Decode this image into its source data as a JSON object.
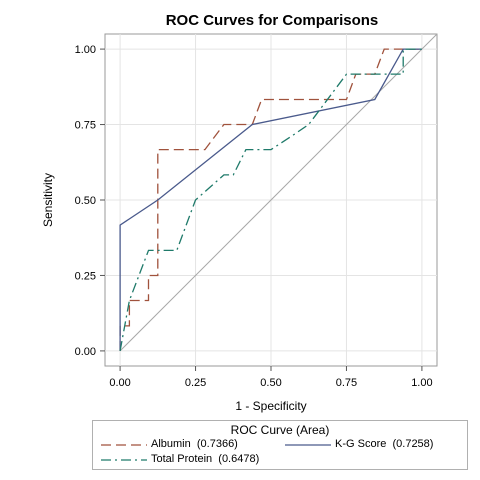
{
  "chart_data": {
    "type": "line",
    "title": "ROC Curves for Comparisons",
    "xlabel": "1 - Specificity",
    "ylabel": "Sensitivity",
    "xlim": [
      -0.05,
      1.05
    ],
    "ylim": [
      -0.05,
      1.05
    ],
    "xticks": [
      "0.00",
      "0.25",
      "0.50",
      "0.75",
      "1.00"
    ],
    "yticks": [
      "0.00",
      "0.25",
      "0.50",
      "0.75",
      "1.00"
    ],
    "grid": true,
    "legend_position": "bottom",
    "legend_title": "ROC Curve (Area)",
    "series": [
      {
        "name": "Albumin",
        "area_label": "(0.7366)",
        "color": "#a0523c",
        "style": "dashed",
        "points": [
          [
            0,
            0
          ],
          [
            0,
            0.083
          ],
          [
            0.031,
            0.083
          ],
          [
            0.031,
            0.167
          ],
          [
            0.094,
            0.167
          ],
          [
            0.094,
            0.25
          ],
          [
            0.125,
            0.25
          ],
          [
            0.125,
            0.667
          ],
          [
            0.281,
            0.667
          ],
          [
            0.344,
            0.75
          ],
          [
            0.438,
            0.75
          ],
          [
            0.469,
            0.833
          ],
          [
            0.75,
            0.833
          ],
          [
            0.781,
            0.917
          ],
          [
            0.844,
            0.917
          ],
          [
            0.875,
            1.0
          ],
          [
            1.0,
            1.0
          ]
        ]
      },
      {
        "name": "K-G Score",
        "area_label": "(0.7258)",
        "color": "#4a5a8c",
        "style": "solid",
        "points": [
          [
            0,
            0
          ],
          [
            0,
            0.417
          ],
          [
            0.125,
            0.5
          ],
          [
            0.438,
            0.75
          ],
          [
            0.844,
            0.833
          ],
          [
            0.938,
            1.0
          ],
          [
            1.0,
            1.0
          ]
        ]
      },
      {
        "name": "Total Protein",
        "area_label": "(0.6478)",
        "color": "#1f7a6a",
        "style": "dashdot",
        "points": [
          [
            0,
            0
          ],
          [
            0.031,
            0.167
          ],
          [
            0.094,
            0.333
          ],
          [
            0.188,
            0.333
          ],
          [
            0.25,
            0.5
          ],
          [
            0.344,
            0.583
          ],
          [
            0.375,
            0.583
          ],
          [
            0.417,
            0.667
          ],
          [
            0.5,
            0.667
          ],
          [
            0.563,
            0.708
          ],
          [
            0.625,
            0.75
          ],
          [
            0.75,
            0.917
          ],
          [
            0.938,
            0.917
          ],
          [
            0.938,
            1.0
          ],
          [
            1.0,
            1.0
          ]
        ]
      }
    ],
    "reference_line": [
      [
        0,
        0
      ],
      [
        1.05,
        1.05
      ]
    ]
  }
}
